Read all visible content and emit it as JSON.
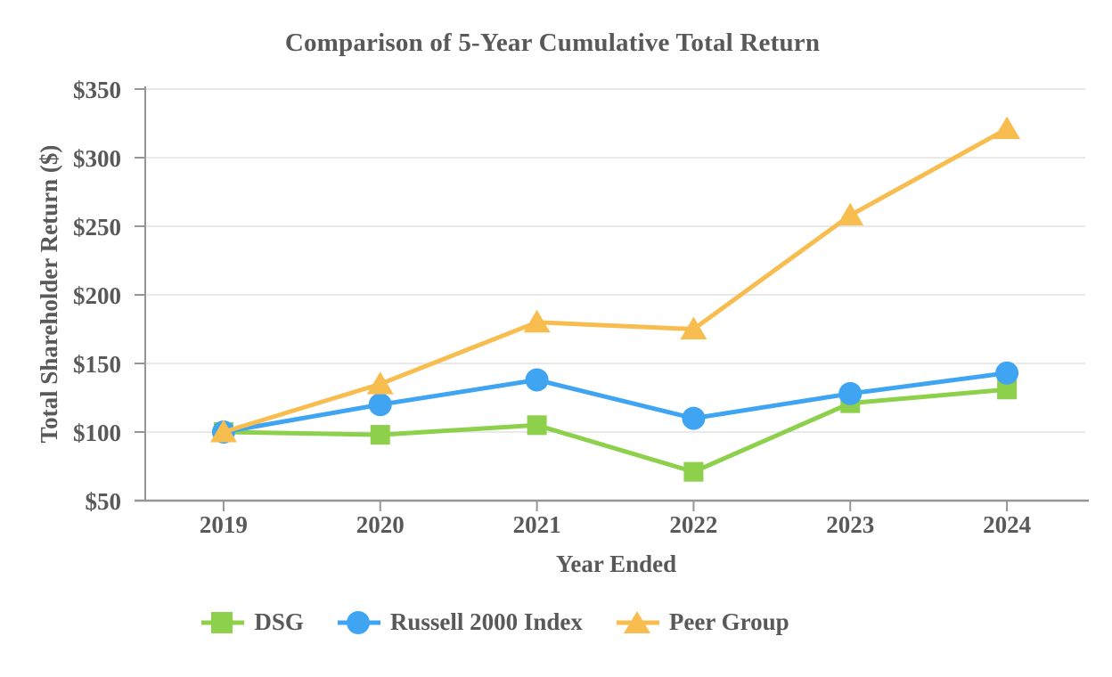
{
  "chart_data": {
    "type": "line",
    "title": "Comparison of 5-Year Cumulative Total Return",
    "xlabel": "Year Ended",
    "ylabel": "Total Shareholder Return ($)",
    "x": [
      "2019",
      "2020",
      "2021",
      "2022",
      "2023",
      "2024"
    ],
    "series": [
      {
        "name": "DSG",
        "marker": "square",
        "color": "#8DD04B",
        "values": [
          100,
          98,
          105,
          71,
          121,
          131
        ]
      },
      {
        "name": "Russell 2000 Index",
        "marker": "circle",
        "color": "#3FA5F3",
        "values": [
          100,
          120,
          138,
          110,
          128,
          143
        ]
      },
      {
        "name": "Peer Group",
        "marker": "triangle",
        "color": "#F7BD4F",
        "values": [
          100,
          135,
          180,
          175,
          258,
          321
        ]
      }
    ],
    "ylim": [
      50,
      350
    ],
    "ytick_step": 50,
    "ytick_prefix": "$",
    "grid": "horizontal-only",
    "legend_position": "bottom"
  },
  "colors": {
    "text": "#595959",
    "axis": "#969696",
    "gridline": "#E2E2E2",
    "background": "#FFFFFF"
  }
}
